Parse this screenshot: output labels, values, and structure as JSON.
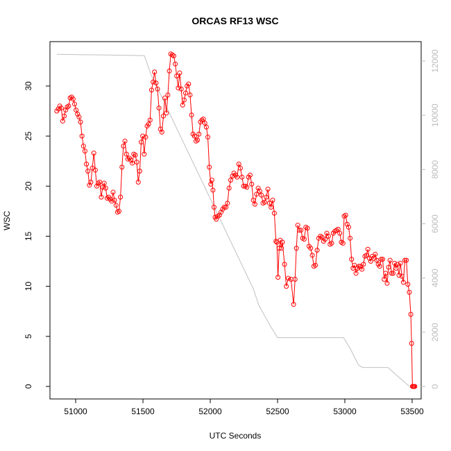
{
  "chart_data": {
    "type": "line",
    "title": "ORCAS RF13 WSC",
    "xlabel": "UTC Seconds",
    "ylabel": "WSC",
    "xlim": [
      50809,
      53567
    ],
    "xticks": [
      51000,
      51500,
      52000,
      52500,
      53000,
      53500
    ],
    "ylim": [
      -1.25,
      34.43
    ],
    "yticks": [
      0,
      5,
      10,
      15,
      20,
      25,
      30
    ],
    "y2lim": [
      -460,
      12716
    ],
    "y2ticks": [
      0,
      2000,
      4000,
      6000,
      8000,
      10000,
      12000
    ],
    "grid": false,
    "series": [
      {
        "color": "#ff0000",
        "markers": true,
        "x": [
          50860,
          50871,
          50882,
          50893,
          50904,
          50915,
          50926,
          50937,
          50948,
          50959,
          50970,
          50981,
          50992,
          51003,
          51014,
          51025,
          51036,
          51047,
          51058,
          51069,
          51080,
          51091,
          51102,
          51113,
          51124,
          51135,
          51146,
          51157,
          51168,
          51179,
          51190,
          51201,
          51212,
          51223,
          51234,
          51245,
          51256,
          51267,
          51278,
          51289,
          51300,
          51311,
          51322,
          51333,
          51344,
          51355,
          51366,
          51377,
          51388,
          51399,
          51410,
          51421,
          51432,
          51443,
          51454,
          51465,
          51476,
          51487,
          51498,
          51509,
          51520,
          51531,
          51542,
          51553,
          51564,
          51575,
          51586,
          51597,
          51608,
          51619,
          51630,
          51641,
          51652,
          51663,
          51674,
          51685,
          51696,
          51707,
          51718,
          51729,
          51740,
          51751,
          51762,
          51773,
          51784,
          51795,
          51806,
          51817,
          51828,
          51839,
          51850,
          51861,
          51872,
          51883,
          51894,
          51905,
          51916,
          51927,
          51938,
          51949,
          51960,
          51971,
          51982,
          51993,
          52004,
          52012,
          52020,
          52028,
          52036,
          52044,
          52056,
          52068,
          52080,
          52092,
          52104,
          52116,
          52128,
          52140,
          52152,
          52164,
          52176,
          52188,
          52200,
          52212,
          52224,
          52236,
          52248,
          52260,
          52272,
          52284,
          52296,
          52308,
          52320,
          52332,
          52344,
          52356,
          52368,
          52380,
          52392,
          52404,
          52416,
          52428,
          52440,
          52452,
          52464,
          52476,
          52488,
          52495,
          52503,
          52512,
          52520,
          52528,
          52536,
          52552,
          52565,
          52580,
          52600,
          52619,
          52630,
          52640,
          52650,
          52662,
          52674,
          52686,
          52698,
          52710,
          52722,
          52734,
          52746,
          52758,
          52770,
          52782,
          52794,
          52806,
          52818,
          52830,
          52842,
          52854,
          52866,
          52878,
          52890,
          52902,
          52914,
          52926,
          52938,
          52950,
          52962,
          52974,
          52986,
          52995,
          53006,
          53017,
          53028,
          53039,
          53050,
          53061,
          53072,
          53083,
          53094,
          53105,
          53116,
          53127,
          53138,
          53149,
          53160,
          53171,
          53182,
          53193,
          53204,
          53215,
          53226,
          53237,
          53248,
          53259,
          53270,
          53281,
          53292,
          53303,
          53314,
          53325,
          53336,
          53347,
          53358,
          53369,
          53380,
          53391,
          53402,
          53413,
          53424,
          53435,
          53446,
          53457,
          53468,
          53479,
          53490,
          53496,
          53502,
          53508,
          53514,
          53520
        ],
        "values": [
          27.5,
          27.7,
          28.0,
          27.8,
          26.5,
          27.0,
          27.6,
          27.9,
          28.0,
          28.8,
          28.9,
          28.7,
          28.2,
          27.6,
          27.2,
          26.9,
          26.4,
          25.0,
          24.0,
          23.5,
          22.2,
          21.5,
          20.1,
          20.4,
          21.8,
          23.3,
          21.6,
          20.0,
          20.3,
          20.4,
          18.9,
          19.9,
          20.3,
          19.8,
          18.8,
          18.9,
          18.7,
          18.5,
          19.4,
          18.6,
          18.1,
          17.4,
          17.5,
          18.9,
          21.9,
          24.0,
          24.5,
          23.2,
          22.7,
          22.8,
          22.6,
          22.3,
          23.2,
          23.1,
          22.4,
          20.4,
          21.5,
          24.4,
          25.0,
          23.2,
          24.9,
          26.0,
          26.2,
          26.6,
          29.6,
          30.4,
          31.4,
          30.3,
          29.7,
          27.8,
          25.7,
          25.4,
          27.0,
          28.8,
          27.3,
          29.1,
          31.5,
          33.2,
          33.1,
          33.0,
          32.2,
          31.0,
          29.8,
          31.3,
          29.7,
          28.1,
          28.6,
          29.3,
          30.0,
          30.2,
          29.1,
          27.1,
          25.2,
          25.0,
          24.5,
          24.6,
          25.2,
          26.4,
          26.6,
          26.7,
          26.3,
          25.9,
          24.9,
          21.9,
          20.2,
          20.6,
          19.6,
          17.9,
          16.9,
          16.7,
          17.0,
          17.1,
          17.4,
          17.7,
          17.9,
          17.9,
          18.3,
          19.8,
          20.6,
          21.0,
          21.3,
          21.1,
          20.9,
          22.2,
          21.8,
          20.9,
          20.0,
          20.0,
          19.9,
          20.9,
          21.1,
          20.2,
          18.6,
          18.2,
          19.2,
          19.8,
          19.5,
          19.1,
          18.3,
          18.4,
          18.9,
          19.7,
          18.3,
          17.9,
          18.6,
          17.3,
          14.5,
          14.4,
          10.9,
          13.8,
          14.6,
          13.8,
          14.4,
          12.2,
          10.0,
          10.8,
          10.7,
          8.2,
          10.7,
          13.8,
          16.1,
          15.6,
          15.6,
          14.8,
          14.7,
          15.9,
          15.8,
          14.0,
          13.8,
          13.1,
          12.0,
          12.1,
          13.6,
          14.8,
          15.0,
          14.9,
          14.5,
          14.7,
          15.3,
          15.0,
          14.2,
          14.3,
          15.3,
          15.5,
          15.6,
          15.7,
          15.3,
          14.4,
          14.3,
          17.0,
          17.1,
          16.2,
          15.9,
          14.8,
          12.7,
          11.8,
          12.1,
          11.3,
          11.8,
          12.0,
          12.0,
          11.7,
          12.2,
          13.0,
          13.1,
          13.7,
          12.8,
          12.5,
          13.0,
          12.8,
          13.2,
          12.6,
          12.2,
          12.0,
          12.7,
          12.7,
          10.7,
          11.3,
          10.3,
          11.9,
          12.6,
          11.3,
          11.3,
          12.3,
          11.8,
          12.2,
          11.1,
          12.3,
          11.0,
          10.4,
          12.6,
          12.6,
          10.2,
          9.4,
          7.2,
          4.3,
          0,
          0,
          0,
          0
        ]
      },
      {
        "color": "#c0c0c0",
        "markers": false,
        "axis": "y2",
        "x": [
          50860,
          51500,
          51510,
          51560,
          52320,
          52360,
          52450,
          52500,
          52990,
          53040,
          53100,
          53130,
          53320,
          53400,
          53480
        ],
        "values": [
          12250,
          12200,
          12200,
          11500,
          3600,
          3000,
          2200,
          1800,
          1800,
          1400,
          800,
          700,
          700,
          350,
          0
        ]
      }
    ]
  }
}
